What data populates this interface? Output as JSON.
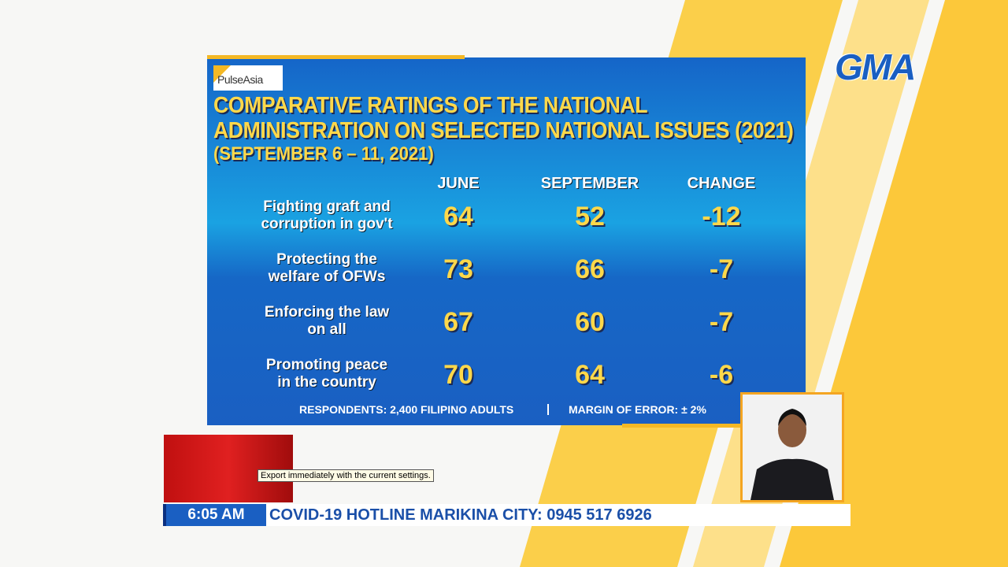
{
  "logo": {
    "source": "PulseAsia",
    "network": "GMA"
  },
  "header": {
    "title_lines": [
      "COMPARATIVE RATINGS OF THE NATIONAL",
      "ADMINISTRATION ON SELECTED NATIONAL ISSUES (2021)"
    ],
    "subtitle": "(SEPTEMBER 6 – 11, 2021)"
  },
  "table": {
    "columns": [
      "JUNE",
      "SEPTEMBER",
      "CHANGE"
    ],
    "rows": [
      {
        "label_lines": [
          "Fighting graft and",
          "corruption in gov't"
        ],
        "values": [
          64,
          52,
          -12
        ]
      },
      {
        "label_lines": [
          "Protecting the",
          "welfare of OFWs"
        ],
        "values": [
          73,
          66,
          -7
        ]
      },
      {
        "label_lines": [
          "Enforcing the law",
          "on all"
        ],
        "values": [
          67,
          60,
          -7
        ]
      },
      {
        "label_lines": [
          "Promoting peace",
          "in the country"
        ],
        "values": [
          70,
          64,
          -6
        ]
      }
    ]
  },
  "footer": {
    "respondents": "RESPONDENTS: 2,400 FILIPINO ADULTS",
    "margin": "MARGIN OF ERROR: ± 2%"
  },
  "tooltip": "Export immediately with the current settings.",
  "ticker": {
    "time": "6:05 AM",
    "text": "COVID-19 HOTLINE MARIKINA CITY: 0945 517 6926"
  }
}
